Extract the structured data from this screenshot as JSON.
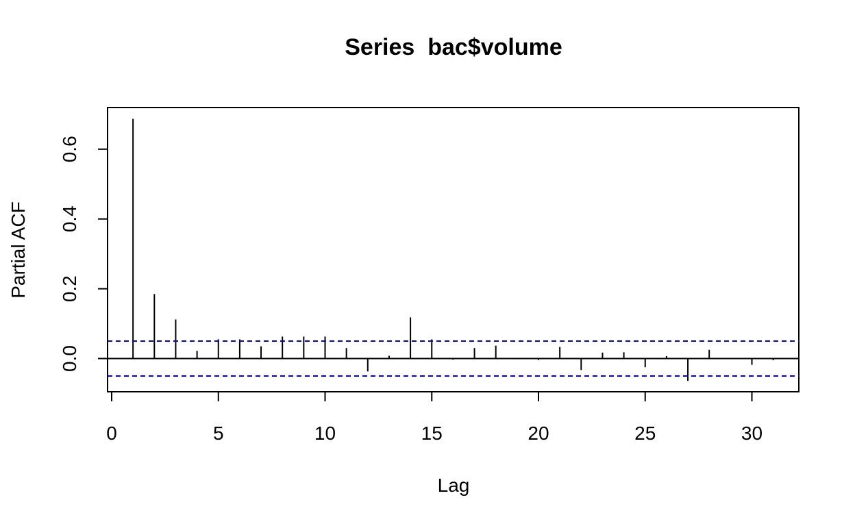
{
  "chart_data": {
    "type": "bar",
    "subtype": "partial-acf-spikes",
    "title": "Series  bac$volume",
    "xlabel": "Lag",
    "ylabel": "Partial ACF",
    "xlim": [
      0,
      31
    ],
    "ylim": [
      -0.09,
      0.69
    ],
    "x_ticks": [
      0,
      5,
      10,
      15,
      20,
      25,
      30
    ],
    "x_tick_labels": [
      "0",
      "5",
      "10",
      "15",
      "20",
      "25",
      "30"
    ],
    "y_ticks": [
      0.0,
      0.2,
      0.4,
      0.6
    ],
    "y_tick_labels": [
      "0.0",
      "0.2",
      "0.4",
      "0.6"
    ],
    "grid": false,
    "legend": "none",
    "zero_line": 0,
    "confidence_bounds": [
      0.05,
      -0.05
    ],
    "colors": {
      "spikes": "#000000",
      "bounds": "#0000CC",
      "zero_line": "#000000"
    },
    "x": [
      1,
      2,
      3,
      4,
      5,
      6,
      7,
      8,
      9,
      10,
      11,
      12,
      13,
      14,
      15,
      16,
      17,
      18,
      19,
      20,
      21,
      22,
      23,
      24,
      25,
      26,
      27,
      28,
      29,
      30,
      31
    ],
    "values": [
      0.687,
      0.185,
      0.112,
      0.022,
      0.055,
      0.055,
      0.035,
      0.063,
      0.063,
      0.063,
      0.03,
      -0.037,
      0.008,
      0.118,
      0.055,
      -0.003,
      0.03,
      0.037,
      -0.002,
      -0.004,
      0.033,
      -0.033,
      0.017,
      0.018,
      -0.025,
      0.007,
      -0.064,
      0.025,
      0.0,
      -0.018,
      -0.005
    ]
  }
}
